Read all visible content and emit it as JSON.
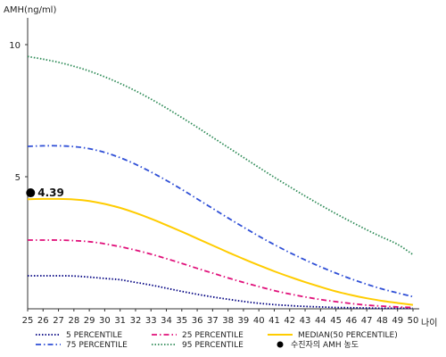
{
  "chart_data": {
    "type": "line",
    "ylabel": "AMH(ng/ml)",
    "xlabel": "나이",
    "x": [
      25,
      26,
      27,
      28,
      29,
      30,
      31,
      32,
      33,
      34,
      35,
      36,
      37,
      38,
      39,
      40,
      41,
      42,
      43,
      44,
      45,
      46,
      47,
      48,
      49,
      50
    ],
    "ylim": [
      0,
      11
    ],
    "y_ticks": [
      "5",
      "10"
    ],
    "grid": false,
    "series": [
      {
        "name": "5 PERCENTILE",
        "color": "#000080",
        "style": "dotted",
        "values": [
          1.25,
          1.25,
          1.25,
          1.24,
          1.2,
          1.15,
          1.1,
          1.0,
          0.9,
          0.78,
          0.66,
          0.55,
          0.45,
          0.36,
          0.28,
          0.21,
          0.16,
          0.12,
          0.09,
          0.07,
          0.05,
          0.04,
          0.03,
          0.02,
          0.02,
          0.02
        ]
      },
      {
        "name": "25 PERCENTILE",
        "color": "#e0107a",
        "style": "dashdot",
        "values": [
          2.6,
          2.6,
          2.6,
          2.58,
          2.54,
          2.46,
          2.35,
          2.22,
          2.07,
          1.9,
          1.72,
          1.53,
          1.35,
          1.17,
          1.0,
          0.84,
          0.69,
          0.56,
          0.45,
          0.35,
          0.27,
          0.2,
          0.14,
          0.1,
          0.07,
          0.05
        ]
      },
      {
        "name": "MEDIAN(50 PERCENTILE)",
        "color": "#ffcc00",
        "style": "solid",
        "values": [
          4.15,
          4.16,
          4.16,
          4.14,
          4.08,
          3.97,
          3.82,
          3.63,
          3.41,
          3.17,
          2.92,
          2.66,
          2.4,
          2.14,
          1.89,
          1.65,
          1.42,
          1.21,
          1.01,
          0.83,
          0.66,
          0.52,
          0.4,
          0.3,
          0.22,
          0.15
        ]
      },
      {
        "name": "75 PERCENTILE",
        "color": "#2f4fd6",
        "style": "dashdot",
        "values": [
          6.15,
          6.17,
          6.17,
          6.14,
          6.06,
          5.92,
          5.72,
          5.47,
          5.18,
          4.86,
          4.52,
          4.16,
          3.8,
          3.44,
          3.09,
          2.75,
          2.43,
          2.13,
          1.85,
          1.59,
          1.35,
          1.13,
          0.93,
          0.75,
          0.6,
          0.46
        ]
      },
      {
        "name": "95 PERCENTILE",
        "color": "#2e8b57",
        "style": "dotted",
        "values": [
          9.55,
          9.45,
          9.33,
          9.18,
          9.0,
          8.78,
          8.53,
          8.25,
          7.94,
          7.6,
          7.24,
          6.87,
          6.49,
          6.11,
          5.73,
          5.35,
          4.98,
          4.62,
          4.27,
          3.93,
          3.6,
          3.29,
          2.99,
          2.71,
          2.44,
          2.05
        ]
      }
    ],
    "patient_point": {
      "legend": "수진자의 AMH 농도",
      "x": 26,
      "y": 4.39,
      "label": "4.39"
    }
  }
}
